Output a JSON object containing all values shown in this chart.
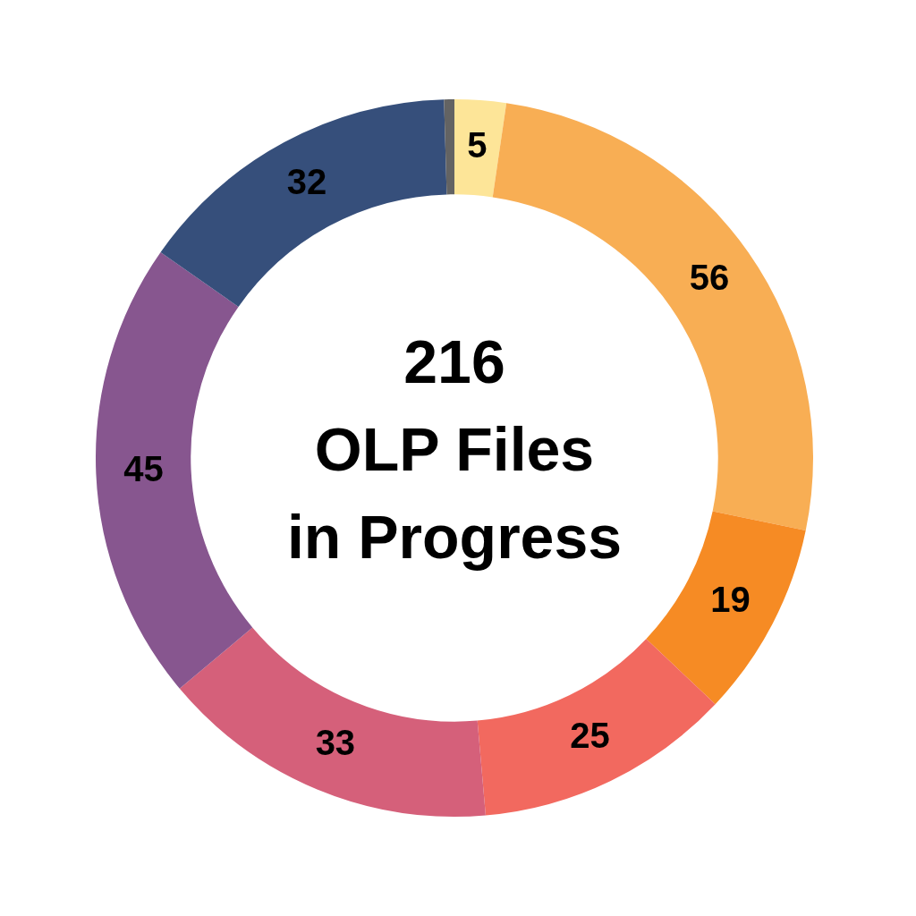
{
  "chart_data": {
    "type": "donut",
    "title": "216",
    "subtitle": "OLP Files\nin Progress",
    "categories": [
      null,
      null,
      null,
      null,
      null,
      null,
      null,
      null
    ],
    "values": [
      5,
      56,
      19,
      25,
      33,
      45,
      32,
      1
    ],
    "colors": [
      "#fde598",
      "#f8ae54",
      "#f68b24",
      "#f2695f",
      "#d5607a",
      "#87568f",
      "#364f7b",
      "#636363"
    ],
    "value_labels": [
      "5",
      "56",
      "19",
      "25",
      "33",
      "45",
      "32",
      null
    ],
    "legend": false
  }
}
